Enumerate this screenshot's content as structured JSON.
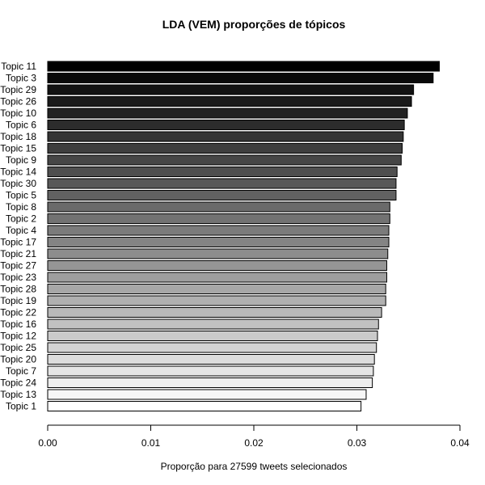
{
  "chart_data": {
    "type": "bar",
    "orientation": "horizontal",
    "title": "LDA (VEM) proporções de tópicos",
    "xlabel": "Proporção para 27599 tweets selecionados",
    "ylabel": "",
    "xlim": [
      0,
      0.04
    ],
    "xticks": [
      0.0,
      0.01,
      0.02,
      0.03,
      0.04
    ],
    "xtick_labels": [
      "0.00",
      "0.01",
      "0.02",
      "0.03",
      "0.04"
    ],
    "grid": false,
    "fill": "grayscale gradient, black (top) to white (bottom), black outline",
    "categories": [
      "Topic 11",
      "Topic 3",
      "Topic 29",
      "Topic 26",
      "Topic 10",
      "Topic 6",
      "Topic 18",
      "Topic 15",
      "Topic 9",
      "Topic 14",
      "Topic 30",
      "Topic 5",
      "Topic 8",
      "Topic 2",
      "Topic 4",
      "Topic 17",
      "Topic 21",
      "Topic 27",
      "Topic 23",
      "Topic 28",
      "Topic 19",
      "Topic 22",
      "Topic 16",
      "Topic 12",
      "Topic 25",
      "Topic 20",
      "Topic 7",
      "Topic 24",
      "Topic 13",
      "Topic 1"
    ],
    "values": [
      0.038,
      0.0374,
      0.0355,
      0.0353,
      0.0349,
      0.0346,
      0.0345,
      0.0344,
      0.0343,
      0.0339,
      0.0338,
      0.0338,
      0.0332,
      0.0332,
      0.0331,
      0.0331,
      0.033,
      0.0329,
      0.0329,
      0.0328,
      0.0328,
      0.0324,
      0.0321,
      0.032,
      0.0319,
      0.0317,
      0.0316,
      0.0315,
      0.0309,
      0.0304
    ]
  }
}
